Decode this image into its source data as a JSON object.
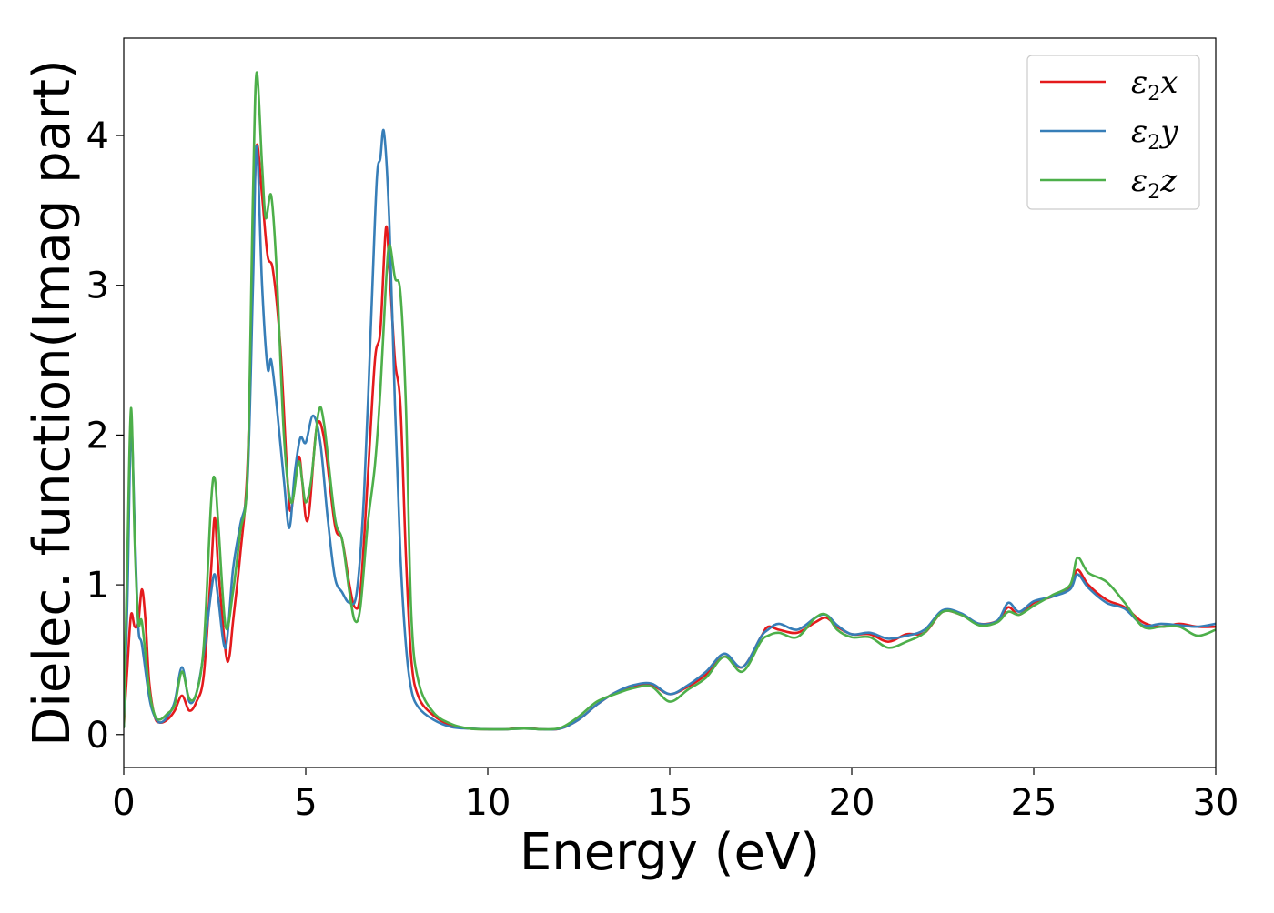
{
  "chart_data": {
    "type": "line",
    "xlabel": "Energy (eV)",
    "ylabel": "Dielec. function(Imag part)",
    "xlim": [
      0,
      30
    ],
    "ylim": [
      -0.22,
      4.65
    ],
    "x_ticks": [
      "0",
      "5",
      "10",
      "15",
      "20",
      "25",
      "30"
    ],
    "y_ticks": [
      "0",
      "1",
      "2",
      "3",
      "4"
    ],
    "grid": false,
    "legend_position": "top-right",
    "series": [
      {
        "name": "ε₂x",
        "label_base": "ε",
        "label_sub": "2",
        "label_axis": "x",
        "color": "#e41a1c",
        "points": [
          [
            0,
            0.05
          ],
          [
            0.1,
            0.45
          ],
          [
            0.2,
            0.8
          ],
          [
            0.3,
            0.72
          ],
          [
            0.4,
            0.75
          ],
          [
            0.5,
            0.97
          ],
          [
            0.6,
            0.75
          ],
          [
            0.7,
            0.35
          ],
          [
            0.85,
            0.12
          ],
          [
            1.0,
            0.08
          ],
          [
            1.2,
            0.1
          ],
          [
            1.4,
            0.16
          ],
          [
            1.6,
            0.26
          ],
          [
            1.8,
            0.16
          ],
          [
            2.0,
            0.22
          ],
          [
            2.2,
            0.4
          ],
          [
            2.4,
            1.1
          ],
          [
            2.5,
            1.45
          ],
          [
            2.6,
            1.1
          ],
          [
            2.8,
            0.55
          ],
          [
            2.9,
            0.52
          ],
          [
            3.0,
            0.75
          ],
          [
            3.2,
            1.2
          ],
          [
            3.4,
            1.8
          ],
          [
            3.55,
            3.2
          ],
          [
            3.65,
            3.93
          ],
          [
            3.8,
            3.6
          ],
          [
            3.95,
            3.2
          ],
          [
            4.1,
            3.1
          ],
          [
            4.3,
            2.6
          ],
          [
            4.5,
            1.7
          ],
          [
            4.6,
            1.5
          ],
          [
            4.8,
            1.85
          ],
          [
            4.9,
            1.7
          ],
          [
            5.0,
            1.45
          ],
          [
            5.1,
            1.5
          ],
          [
            5.3,
            2.05
          ],
          [
            5.5,
            1.98
          ],
          [
            5.8,
            1.4
          ],
          [
            6.0,
            1.3
          ],
          [
            6.2,
            1.0
          ],
          [
            6.35,
            0.85
          ],
          [
            6.5,
            0.95
          ],
          [
            6.7,
            1.7
          ],
          [
            6.9,
            2.5
          ],
          [
            7.05,
            2.7
          ],
          [
            7.2,
            3.38
          ],
          [
            7.3,
            3.1
          ],
          [
            7.45,
            2.5
          ],
          [
            7.6,
            2.2
          ],
          [
            7.75,
            1.2
          ],
          [
            7.9,
            0.5
          ],
          [
            8.1,
            0.25
          ],
          [
            8.5,
            0.13
          ],
          [
            9.0,
            0.06
          ],
          [
            9.5,
            0.04
          ],
          [
            10,
            0.035
          ],
          [
            10.5,
            0.035
          ],
          [
            11,
            0.045
          ],
          [
            11.5,
            0.035
          ],
          [
            12,
            0.04
          ],
          [
            12.5,
            0.1
          ],
          [
            13,
            0.2
          ],
          [
            13.5,
            0.28
          ],
          [
            14,
            0.32
          ],
          [
            14.5,
            0.33
          ],
          [
            15,
            0.27
          ],
          [
            15.5,
            0.32
          ],
          [
            16,
            0.4
          ],
          [
            16.5,
            0.52
          ],
          [
            17,
            0.45
          ],
          [
            17.5,
            0.65
          ],
          [
            17.7,
            0.72
          ],
          [
            18,
            0.7
          ],
          [
            18.5,
            0.68
          ],
          [
            19,
            0.75
          ],
          [
            19.3,
            0.78
          ],
          [
            19.6,
            0.72
          ],
          [
            20,
            0.67
          ],
          [
            20.5,
            0.67
          ],
          [
            21,
            0.62
          ],
          [
            21.5,
            0.67
          ],
          [
            22,
            0.68
          ],
          [
            22.5,
            0.82
          ],
          [
            23,
            0.8
          ],
          [
            23.5,
            0.74
          ],
          [
            24,
            0.76
          ],
          [
            24.3,
            0.85
          ],
          [
            24.6,
            0.8
          ],
          [
            25,
            0.88
          ],
          [
            25.5,
            0.92
          ],
          [
            26,
            0.98
          ],
          [
            26.2,
            1.1
          ],
          [
            26.5,
            1.0
          ],
          [
            27,
            0.9
          ],
          [
            27.5,
            0.85
          ],
          [
            28,
            0.75
          ],
          [
            28.5,
            0.72
          ],
          [
            29,
            0.74
          ],
          [
            29.5,
            0.72
          ],
          [
            30,
            0.72
          ]
        ]
      },
      {
        "name": "ε₂y",
        "label_base": "ε",
        "label_sub": "2",
        "label_axis": "y",
        "color": "#377eb8",
        "points": [
          [
            0,
            0.05
          ],
          [
            0.1,
            0.9
          ],
          [
            0.2,
            2.05
          ],
          [
            0.3,
            1.4
          ],
          [
            0.4,
            0.72
          ],
          [
            0.5,
            0.6
          ],
          [
            0.7,
            0.25
          ],
          [
            0.85,
            0.12
          ],
          [
            1.0,
            0.08
          ],
          [
            1.2,
            0.12
          ],
          [
            1.4,
            0.22
          ],
          [
            1.6,
            0.45
          ],
          [
            1.8,
            0.22
          ],
          [
            2.0,
            0.28
          ],
          [
            2.2,
            0.55
          ],
          [
            2.4,
            0.95
          ],
          [
            2.5,
            1.07
          ],
          [
            2.6,
            0.9
          ],
          [
            2.8,
            0.58
          ],
          [
            3.0,
            1.1
          ],
          [
            3.2,
            1.4
          ],
          [
            3.4,
            1.7
          ],
          [
            3.55,
            3.0
          ],
          [
            3.65,
            3.93
          ],
          [
            3.8,
            3.0
          ],
          [
            3.95,
            2.45
          ],
          [
            4.05,
            2.5
          ],
          [
            4.2,
            2.2
          ],
          [
            4.4,
            1.7
          ],
          [
            4.55,
            1.38
          ],
          [
            4.7,
            1.75
          ],
          [
            4.85,
            1.98
          ],
          [
            5.0,
            1.95
          ],
          [
            5.2,
            2.13
          ],
          [
            5.4,
            1.95
          ],
          [
            5.6,
            1.45
          ],
          [
            5.8,
            1.05
          ],
          [
            6.0,
            0.95
          ],
          [
            6.2,
            0.88
          ],
          [
            6.4,
            0.95
          ],
          [
            6.6,
            1.6
          ],
          [
            6.8,
            2.8
          ],
          [
            6.95,
            3.7
          ],
          [
            7.05,
            3.85
          ],
          [
            7.15,
            4.02
          ],
          [
            7.3,
            3.4
          ],
          [
            7.45,
            2.2
          ],
          [
            7.6,
            1.2
          ],
          [
            7.75,
            0.6
          ],
          [
            7.9,
            0.3
          ],
          [
            8.1,
            0.18
          ],
          [
            8.5,
            0.1
          ],
          [
            9.0,
            0.05
          ],
          [
            9.5,
            0.04
          ],
          [
            10,
            0.035
          ],
          [
            10.5,
            0.035
          ],
          [
            11,
            0.04
          ],
          [
            11.5,
            0.035
          ],
          [
            12,
            0.04
          ],
          [
            12.5,
            0.1
          ],
          [
            13,
            0.2
          ],
          [
            13.5,
            0.28
          ],
          [
            14,
            0.33
          ],
          [
            14.5,
            0.34
          ],
          [
            15,
            0.27
          ],
          [
            15.5,
            0.33
          ],
          [
            16,
            0.42
          ],
          [
            16.5,
            0.54
          ],
          [
            17,
            0.45
          ],
          [
            17.5,
            0.65
          ],
          [
            17.7,
            0.7
          ],
          [
            18,
            0.74
          ],
          [
            18.5,
            0.7
          ],
          [
            19,
            0.78
          ],
          [
            19.3,
            0.8
          ],
          [
            19.6,
            0.73
          ],
          [
            20,
            0.67
          ],
          [
            20.5,
            0.68
          ],
          [
            21,
            0.64
          ],
          [
            21.5,
            0.66
          ],
          [
            22,
            0.7
          ],
          [
            22.5,
            0.83
          ],
          [
            23,
            0.81
          ],
          [
            23.5,
            0.74
          ],
          [
            24,
            0.76
          ],
          [
            24.3,
            0.88
          ],
          [
            24.6,
            0.82
          ],
          [
            25,
            0.89
          ],
          [
            25.5,
            0.92
          ],
          [
            26,
            0.97
          ],
          [
            26.2,
            1.07
          ],
          [
            26.5,
            0.98
          ],
          [
            27,
            0.88
          ],
          [
            27.5,
            0.84
          ],
          [
            28,
            0.73
          ],
          [
            28.5,
            0.74
          ],
          [
            29,
            0.73
          ],
          [
            29.5,
            0.72
          ],
          [
            30,
            0.74
          ]
        ]
      },
      {
        "name": "ε₂z",
        "label_base": "ε",
        "label_sub": "2",
        "label_axis": "z",
        "color": "#4daf4a",
        "points": [
          [
            0,
            0.05
          ],
          [
            0.1,
            1.2
          ],
          [
            0.2,
            2.18
          ],
          [
            0.3,
            1.3
          ],
          [
            0.4,
            0.75
          ],
          [
            0.5,
            0.75
          ],
          [
            0.7,
            0.3
          ],
          [
            0.85,
            0.13
          ],
          [
            1.0,
            0.1
          ],
          [
            1.2,
            0.14
          ],
          [
            1.4,
            0.2
          ],
          [
            1.6,
            0.42
          ],
          [
            1.8,
            0.24
          ],
          [
            2.0,
            0.28
          ],
          [
            2.2,
            0.6
          ],
          [
            2.4,
            1.55
          ],
          [
            2.5,
            1.71
          ],
          [
            2.6,
            1.4
          ],
          [
            2.8,
            0.72
          ],
          [
            3.0,
            0.95
          ],
          [
            3.2,
            1.35
          ],
          [
            3.4,
            1.75
          ],
          [
            3.55,
            3.6
          ],
          [
            3.65,
            4.42
          ],
          [
            3.8,
            3.8
          ],
          [
            3.9,
            3.45
          ],
          [
            4.05,
            3.6
          ],
          [
            4.2,
            3.1
          ],
          [
            4.4,
            2.0
          ],
          [
            4.6,
            1.55
          ],
          [
            4.8,
            1.82
          ],
          [
            4.9,
            1.7
          ],
          [
            5.0,
            1.55
          ],
          [
            5.15,
            1.7
          ],
          [
            5.35,
            2.15
          ],
          [
            5.5,
            2.08
          ],
          [
            5.8,
            1.45
          ],
          [
            6.0,
            1.3
          ],
          [
            6.2,
            0.95
          ],
          [
            6.35,
            0.76
          ],
          [
            6.5,
            0.85
          ],
          [
            6.7,
            1.4
          ],
          [
            6.9,
            1.8
          ],
          [
            7.05,
            2.3
          ],
          [
            7.2,
            3.0
          ],
          [
            7.3,
            3.27
          ],
          [
            7.45,
            3.05
          ],
          [
            7.6,
            2.95
          ],
          [
            7.75,
            2.2
          ],
          [
            7.9,
            0.8
          ],
          [
            8.1,
            0.35
          ],
          [
            8.5,
            0.15
          ],
          [
            9.0,
            0.07
          ],
          [
            9.5,
            0.04
          ],
          [
            10,
            0.035
          ],
          [
            10.5,
            0.035
          ],
          [
            11,
            0.04
          ],
          [
            11.5,
            0.035
          ],
          [
            12,
            0.045
          ],
          [
            12.5,
            0.12
          ],
          [
            13,
            0.22
          ],
          [
            13.5,
            0.27
          ],
          [
            14,
            0.31
          ],
          [
            14.5,
            0.32
          ],
          [
            15,
            0.22
          ],
          [
            15.5,
            0.3
          ],
          [
            16,
            0.38
          ],
          [
            16.5,
            0.52
          ],
          [
            17,
            0.42
          ],
          [
            17.5,
            0.62
          ],
          [
            17.7,
            0.66
          ],
          [
            18,
            0.68
          ],
          [
            18.5,
            0.65
          ],
          [
            19,
            0.78
          ],
          [
            19.3,
            0.8
          ],
          [
            19.6,
            0.7
          ],
          [
            20,
            0.65
          ],
          [
            20.5,
            0.65
          ],
          [
            21,
            0.58
          ],
          [
            21.5,
            0.62
          ],
          [
            22,
            0.68
          ],
          [
            22.5,
            0.82
          ],
          [
            23,
            0.8
          ],
          [
            23.5,
            0.73
          ],
          [
            24,
            0.75
          ],
          [
            24.3,
            0.82
          ],
          [
            24.6,
            0.8
          ],
          [
            25,
            0.86
          ],
          [
            25.5,
            0.93
          ],
          [
            26,
            1.0
          ],
          [
            26.2,
            1.18
          ],
          [
            26.5,
            1.08
          ],
          [
            27,
            1.02
          ],
          [
            27.5,
            0.88
          ],
          [
            28,
            0.72
          ],
          [
            28.5,
            0.72
          ],
          [
            29,
            0.72
          ],
          [
            29.5,
            0.66
          ],
          [
            30,
            0.7
          ]
        ]
      }
    ]
  }
}
